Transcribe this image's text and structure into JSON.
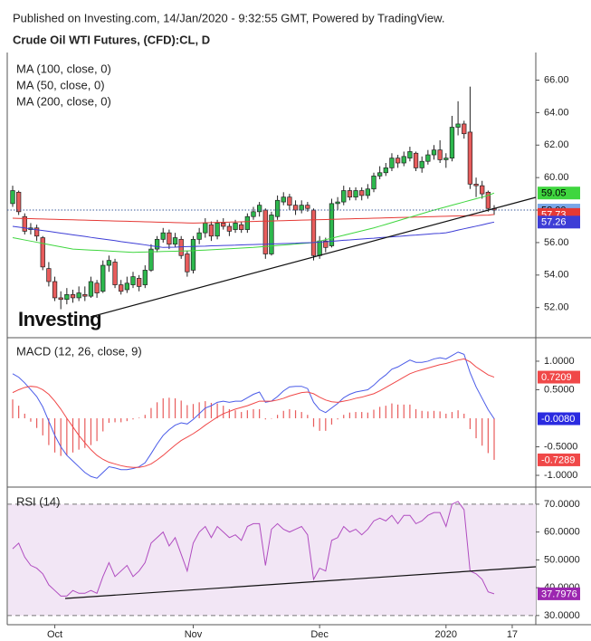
{
  "header": {
    "published": "Published on Investing.com, 14/Jan/2020 - 9:32:55 GMT, Powered by TradingView."
  },
  "chart_data": [
    {
      "type": "candlestick",
      "title": "Crude Oil WTI Futures, (CFD):CL, D",
      "logo": "Investing",
      "up_color": "#2db84d",
      "down_color": "#e85c5c",
      "open": [
        58.4,
        59.1,
        57.6,
        56.8,
        56.9,
        56.3,
        54.4,
        53.6,
        52.6,
        52.5,
        52.8,
        52.6,
        52.8,
        52.7,
        53.5,
        53.0,
        54.6,
        54.8,
        53.4,
        53.1,
        53.4,
        53.8,
        53.4,
        54.3,
        55.6,
        56.2,
        56.6,
        55.9,
        56.2,
        55.3,
        54.3,
        56.2,
        56.6,
        57.1,
        56.4,
        57.2,
        57.0,
        56.8,
        57.1,
        56.8,
        57.6,
        57.9,
        58.0,
        55.3,
        57.6,
        58.5,
        58.8,
        58.3,
        58.0,
        58.3,
        58.0,
        55.2,
        56.1,
        55.8,
        58.4,
        58.5,
        59.2,
        58.8,
        59.2,
        58.9,
        59.3,
        60.1,
        60.3,
        60.6,
        61.2,
        60.9,
        61.2,
        61.5,
        60.6,
        61.0,
        61.4,
        61.7,
        61.1,
        61.2,
        63.1,
        63.3,
        62.8,
        59.6,
        59.5,
        59.1,
        58.1
      ],
      "high": [
        59.5,
        59.2,
        57.8,
        57.2,
        57.1,
        56.4,
        54.8,
        53.9,
        53.0,
        53.2,
        53.1,
        53.3,
        53.3,
        53.9,
        53.7,
        54.9,
        55.2,
        55.0,
        53.7,
        53.9,
        54.2,
        54.0,
        54.6,
        55.9,
        56.4,
        56.9,
        56.8,
        56.6,
        56.4,
        55.5,
        56.4,
        56.9,
        57.5,
        57.3,
        57.4,
        57.5,
        57.2,
        57.4,
        57.3,
        57.8,
        58.2,
        58.5,
        58.1,
        57.9,
        58.9,
        59.1,
        59.0,
        58.6,
        58.6,
        58.5,
        58.1,
        56.4,
        56.3,
        58.7,
        58.8,
        59.5,
        59.4,
        59.4,
        59.4,
        59.6,
        60.3,
        60.7,
        60.9,
        61.5,
        61.4,
        61.6,
        61.9,
        61.6,
        61.3,
        61.7,
        62.0,
        62.3,
        61.5,
        63.8,
        64.7,
        63.5,
        65.6,
        60.0,
        59.8,
        59.2,
        58.3
      ],
      "low": [
        58.2,
        57.7,
        56.5,
        56.5,
        56.1,
        54.3,
        53.3,
        52.4,
        51.9,
        52.2,
        52.3,
        52.4,
        52.4,
        52.6,
        52.6,
        52.9,
        54.2,
        53.2,
        52.8,
        52.9,
        53.2,
        53.0,
        53.2,
        54.2,
        55.4,
        56.0,
        55.6,
        55.7,
        55.0,
        53.9,
        54.1,
        55.9,
        56.3,
        56.1,
        56.2,
        56.8,
        56.4,
        56.6,
        56.6,
        56.6,
        57.4,
        57.6,
        55.0,
        55.2,
        57.4,
        58.3,
        58.0,
        57.7,
        57.8,
        57.9,
        54.9,
        55.0,
        55.4,
        55.7,
        58.0,
        58.3,
        58.6,
        58.6,
        58.6,
        58.7,
        59.1,
        59.9,
        60.1,
        60.4,
        60.6,
        60.7,
        61.0,
        60.4,
        60.3,
        60.8,
        61.1,
        60.9,
        60.6,
        61.0,
        62.6,
        62.4,
        59.3,
        58.8,
        58.7,
        57.9,
        57.7
      ],
      "close": [
        59.2,
        57.9,
        56.7,
        56.9,
        56.4,
        54.5,
        53.6,
        52.6,
        52.5,
        52.8,
        52.6,
        52.9,
        52.7,
        53.6,
        52.9,
        54.6,
        54.9,
        53.4,
        53.0,
        53.5,
        53.9,
        53.3,
        54.3,
        55.6,
        56.2,
        56.6,
        55.9,
        56.3,
        55.2,
        54.2,
        56.2,
        56.6,
        57.2,
        56.4,
        57.2,
        57.0,
        56.7,
        57.2,
        56.8,
        57.6,
        57.9,
        58.3,
        55.3,
        57.7,
        58.6,
        58.8,
        58.3,
        58.0,
        58.3,
        58.1,
        55.2,
        56.1,
        55.7,
        58.4,
        58.5,
        59.2,
        58.8,
        59.2,
        58.9,
        59.3,
        60.1,
        60.3,
        60.6,
        61.2,
        60.9,
        61.3,
        61.6,
        60.6,
        61.0,
        61.4,
        61.7,
        61.1,
        61.2,
        63.1,
        63.3,
        62.7,
        59.6,
        59.5,
        59.0,
        58.1,
        58.0
      ],
      "series": [
        {
          "name": "MA (100, close, 0)",
          "color": "#e53935",
          "values": [
            57.5,
            57.49,
            57.48,
            57.47,
            57.46,
            57.45,
            57.44,
            57.43,
            57.42,
            57.41,
            57.4,
            57.39,
            57.38,
            57.37,
            57.36,
            57.35,
            57.34,
            57.33,
            57.32,
            57.31,
            57.3,
            57.29,
            57.28,
            57.27,
            57.26,
            57.25,
            57.24,
            57.23,
            57.22,
            57.21,
            57.2,
            57.21,
            57.22,
            57.23,
            57.24,
            57.25,
            57.26,
            57.27,
            57.28,
            57.29,
            57.3,
            57.31,
            57.32,
            57.33,
            57.34,
            57.35,
            57.36,
            57.37,
            57.38,
            57.39,
            57.4,
            57.41,
            57.42,
            57.43,
            57.44,
            57.45,
            57.46,
            57.47,
            57.48,
            57.49,
            57.5,
            57.51,
            57.52,
            57.53,
            57.54,
            57.55,
            57.56,
            57.57,
            57.58,
            57.59,
            57.6,
            57.61,
            57.62,
            57.63,
            57.64,
            57.65,
            57.66,
            57.67,
            57.68,
            57.69,
            57.73
          ]
        },
        {
          "name": "MA (50, close, 0)",
          "color": "#3fd63f",
          "values": [
            56.3,
            56.23,
            56.16,
            56.09,
            56.02,
            55.95,
            55.88,
            55.81,
            55.74,
            55.67,
            55.6,
            55.58,
            55.56,
            55.54,
            55.52,
            55.5,
            55.48,
            55.46,
            55.44,
            55.42,
            55.4,
            55.41,
            55.42,
            55.43,
            55.44,
            55.45,
            55.46,
            55.47,
            55.48,
            55.49,
            55.5,
            55.52,
            55.54,
            55.56,
            55.58,
            55.6,
            55.62,
            55.64,
            55.66,
            55.68,
            55.7,
            55.73,
            55.76,
            55.79,
            55.82,
            55.85,
            55.88,
            55.91,
            55.94,
            55.97,
            56.0,
            56.09,
            56.18,
            56.27,
            56.36,
            56.45,
            56.54,
            56.63,
            56.72,
            56.81,
            56.9,
            57.01,
            57.12,
            57.23,
            57.34,
            57.45,
            57.56,
            57.67,
            57.78,
            57.89,
            58.0,
            58.1,
            58.2,
            58.3,
            58.4,
            58.5,
            58.6,
            58.7,
            58.8,
            58.9,
            59.05
          ]
        },
        {
          "name": "MA (200, close, 0)",
          "color": "#3d3dd6",
          "values": [
            57.0,
            56.95,
            56.9,
            56.84,
            56.79,
            56.74,
            56.69,
            56.64,
            56.58,
            56.53,
            56.48,
            56.43,
            56.38,
            56.32,
            56.27,
            56.22,
            56.17,
            56.12,
            56.06,
            56.01,
            55.96,
            55.91,
            55.86,
            55.8,
            55.75,
            55.7,
            55.71,
            55.72,
            55.74,
            55.75,
            55.76,
            55.77,
            55.78,
            55.8,
            55.81,
            55.82,
            55.83,
            55.84,
            55.86,
            55.87,
            55.88,
            55.89,
            55.9,
            55.92,
            55.93,
            55.94,
            55.95,
            55.96,
            55.98,
            55.99,
            56.0,
            56.03,
            56.05,
            56.08,
            56.11,
            56.14,
            56.16,
            56.19,
            56.22,
            56.25,
            56.27,
            56.3,
            56.33,
            56.35,
            56.38,
            56.41,
            56.44,
            56.46,
            56.49,
            56.52,
            56.55,
            56.57,
            56.6,
            56.68,
            56.77,
            56.85,
            56.93,
            57.01,
            57.09,
            57.18,
            57.26
          ]
        }
      ],
      "ylim": [
        50.2,
        67.7
      ],
      "yticks": [
        {
          "value": 52,
          "label": "52.00"
        },
        {
          "value": 54,
          "label": "54.00"
        },
        {
          "value": 56,
          "label": "56.00"
        },
        {
          "value": 58,
          "label": "58.00"
        },
        {
          "value": 60,
          "label": "60.00"
        },
        {
          "value": 62,
          "label": "62.00"
        },
        {
          "value": 64,
          "label": "64.00"
        },
        {
          "value": 66,
          "label": "66.00"
        }
      ],
      "tags": [
        {
          "value": 59.05,
          "label": "59.05",
          "color": "#3fd63f",
          "text_color": "#000000"
        },
        {
          "value": 58.0,
          "label": "58.00",
          "color": "#7aa7e8",
          "text_color": "#000000",
          "dotted": true
        },
        {
          "value": 57.73,
          "label": "57.73",
          "color": "#e53935",
          "text_color": "#ffffff"
        },
        {
          "value": 57.26,
          "label": "57.26",
          "color": "#3d3dd6",
          "text_color": "#ffffff"
        }
      ]
    },
    {
      "type": "macd",
      "title": "MACD (12, 26, close, 9)",
      "series": [
        {
          "color": "#4a5be8",
          "values": [
            0.78,
            0.72,
            0.62,
            0.5,
            0.38,
            0.2,
            -0.05,
            -0.3,
            -0.5,
            -0.65,
            -0.75,
            -0.85,
            -0.95,
            -1.02,
            -1.05,
            -0.95,
            -0.85,
            -0.87,
            -0.9,
            -0.9,
            -0.88,
            -0.85,
            -0.78,
            -0.62,
            -0.45,
            -0.3,
            -0.2,
            -0.12,
            -0.08,
            -0.1,
            -0.02,
            0.08,
            0.18,
            0.22,
            0.28,
            0.3,
            0.28,
            0.3,
            0.3,
            0.36,
            0.42,
            0.46,
            0.28,
            0.3,
            0.38,
            0.48,
            0.55,
            0.56,
            0.56,
            0.52,
            0.28,
            0.15,
            0.1,
            0.18,
            0.26,
            0.36,
            0.42,
            0.46,
            0.48,
            0.5,
            0.58,
            0.68,
            0.76,
            0.86,
            0.9,
            0.96,
            1.02,
            0.98,
            0.98,
            1.0,
            1.04,
            1.06,
            1.04,
            1.1,
            1.16,
            1.12,
            0.8,
            0.55,
            0.35,
            0.15,
            -0.008
          ]
        },
        {
          "color": "#f04848",
          "values": [
            0.45,
            0.5,
            0.54,
            0.56,
            0.55,
            0.5,
            0.42,
            0.3,
            0.16,
            0.0,
            -0.15,
            -0.3,
            -0.43,
            -0.55,
            -0.65,
            -0.72,
            -0.77,
            -0.8,
            -0.83,
            -0.85,
            -0.86,
            -0.86,
            -0.84,
            -0.8,
            -0.73,
            -0.65,
            -0.56,
            -0.47,
            -0.39,
            -0.33,
            -0.27,
            -0.2,
            -0.12,
            -0.05,
            0.02,
            0.08,
            0.12,
            0.16,
            0.19,
            0.22,
            0.26,
            0.3,
            0.3,
            0.3,
            0.32,
            0.35,
            0.39,
            0.42,
            0.45,
            0.46,
            0.43,
            0.37,
            0.32,
            0.29,
            0.28,
            0.3,
            0.32,
            0.35,
            0.37,
            0.4,
            0.43,
            0.48,
            0.54,
            0.6,
            0.66,
            0.72,
            0.78,
            0.82,
            0.85,
            0.88,
            0.91,
            0.94,
            0.96,
            0.99,
            1.02,
            1.04,
            0.99,
            0.9,
            0.83,
            0.76,
            0.7209
          ]
        }
      ],
      "histogram": {
        "color": "#e85c5c",
        "values": [
          0.33,
          0.22,
          0.08,
          -0.06,
          -0.17,
          -0.3,
          -0.47,
          -0.6,
          -0.66,
          -0.65,
          -0.6,
          -0.55,
          -0.52,
          -0.47,
          -0.4,
          -0.23,
          -0.08,
          -0.07,
          -0.07,
          -0.05,
          -0.02,
          0.01,
          0.06,
          0.18,
          0.28,
          0.35,
          0.36,
          0.35,
          0.31,
          0.23,
          0.25,
          0.28,
          0.3,
          0.27,
          0.26,
          0.22,
          0.16,
          0.14,
          0.11,
          0.14,
          0.16,
          0.16,
          -0.02,
          0.0,
          0.06,
          0.13,
          0.16,
          0.14,
          0.11,
          0.06,
          -0.15,
          -0.22,
          -0.22,
          -0.11,
          -0.02,
          0.06,
          0.1,
          0.11,
          0.11,
          0.1,
          0.15,
          0.2,
          0.22,
          0.26,
          0.24,
          0.24,
          0.24,
          0.16,
          0.13,
          0.12,
          0.13,
          0.12,
          0.08,
          0.11,
          0.14,
          0.08,
          -0.19,
          -0.35,
          -0.48,
          -0.61,
          -0.7289
        ]
      },
      "ylim": [
        -1.19,
        1.38
      ],
      "yticks": [
        {
          "value": -1,
          "label": "-1.0000"
        },
        {
          "value": -0.5,
          "label": "-0.5000"
        },
        {
          "value": 0.5,
          "label": "0.5000"
        },
        {
          "value": 1,
          "label": "1.0000"
        }
      ],
      "tags": [
        {
          "value": 0.7209,
          "label": "0.7209",
          "color": "#f04848",
          "text_color": "#ffffff"
        },
        {
          "value": -0.008,
          "label": "-0.0080",
          "color": "#2a2ae0",
          "text_color": "#ffffff"
        },
        {
          "value": -0.7289,
          "label": "-0.7289",
          "color": "#f04848",
          "text_color": "#ffffff"
        }
      ]
    },
    {
      "type": "line",
      "title": "RSI (14)",
      "color": "#b04cc0",
      "band": [
        30,
        70
      ],
      "band_color": "#f2e6f5",
      "categories": [
        null,
        null,
        null,
        null,
        null,
        null,
        null,
        "Oct",
        null,
        null,
        null,
        null,
        null,
        null,
        null,
        null,
        null,
        null,
        null,
        null,
        null,
        null,
        null,
        null,
        null,
        null,
        null,
        null,
        null,
        null,
        "Nov",
        null,
        null,
        null,
        null,
        null,
        null,
        null,
        null,
        null,
        null,
        null,
        null,
        null,
        null,
        null,
        null,
        null,
        null,
        null,
        null,
        "Dec",
        null,
        null,
        null,
        null,
        null,
        null,
        null,
        null,
        null,
        null,
        null,
        null,
        null,
        null,
        null,
        null,
        null,
        null,
        null,
        null,
        "2020",
        null,
        null,
        null,
        null,
        null,
        null,
        null,
        null,
        null,
        null,
        "17"
      ],
      "values": [
        54,
        56,
        51,
        48,
        47,
        45,
        41,
        39,
        37,
        37,
        39,
        38,
        38,
        39,
        38,
        44,
        49,
        44,
        46,
        48,
        44,
        46,
        49,
        56,
        58,
        60,
        55,
        58,
        52,
        46,
        56,
        60,
        62,
        58,
        62,
        60,
        58,
        59,
        57,
        62,
        63,
        63,
        48,
        61,
        63,
        61,
        60,
        61,
        62,
        59,
        43,
        47,
        46,
        57,
        58,
        62,
        60,
        61,
        59,
        61,
        64,
        65,
        64,
        66,
        63,
        66,
        66,
        63,
        64,
        66,
        67,
        67,
        62,
        70,
        71,
        68,
        46,
        45,
        43,
        38.5,
        37.7976,
        null,
        null,
        null
      ],
      "ylim": [
        26.7,
        75.5
      ],
      "yticks": [
        {
          "value": 30,
          "label": "30.0000"
        },
        {
          "value": 40,
          "label": "40.0000"
        },
        {
          "value": 50,
          "label": "50.0000"
        },
        {
          "value": 60,
          "label": "60.0000"
        },
        {
          "value": 70,
          "label": "70.0000"
        }
      ],
      "tags": [
        {
          "value": 37.7976,
          "label": "37.7976",
          "color": "#9c27b0",
          "text_color": "#ffffff"
        }
      ]
    }
  ]
}
